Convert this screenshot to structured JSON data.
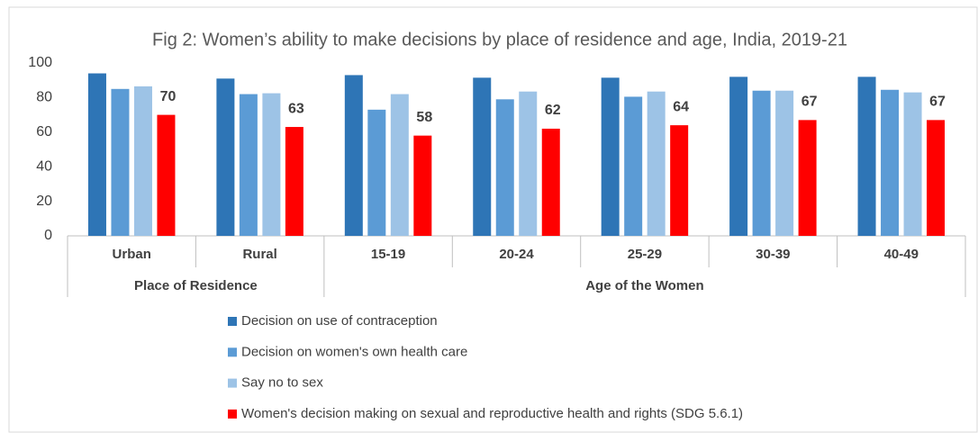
{
  "chart_data": {
    "type": "bar",
    "title": "Fig 2: Women’s ability to make decisions by place of residence and age, India, 2019-21",
    "groups": [
      {
        "name": "Place of Residence",
        "categories": [
          "Urban",
          "Rural"
        ]
      },
      {
        "name": "Age of the Women",
        "categories": [
          "15-19",
          "20-24",
          "25-29",
          "30-39",
          "40-49"
        ]
      }
    ],
    "series": [
      {
        "name": "Decision on use of contraception",
        "color": "#2e75b6",
        "values": [
          94,
          91,
          93,
          91.5,
          91.5,
          92,
          92
        ]
      },
      {
        "name": "Decision on women's own health care",
        "color": "#5b9bd5",
        "values": [
          85,
          82,
          73,
          79,
          80.5,
          84,
          84.5
        ]
      },
      {
        "name": "Say no to sex",
        "color": "#9dc3e6",
        "values": [
          86.5,
          82.5,
          82,
          83.5,
          83.5,
          84,
          83
        ]
      },
      {
        "name": "Women's decision making on sexual and reproductive health and rights (SDG 5.6.1)",
        "color": "#ff0000",
        "values": [
          70,
          63,
          58,
          62,
          64,
          67,
          67
        ],
        "show_labels": true
      }
    ],
    "ylim": [
      0,
      100
    ],
    "yticks": [
      0,
      20,
      40,
      60,
      80,
      100
    ],
    "grid": false
  }
}
